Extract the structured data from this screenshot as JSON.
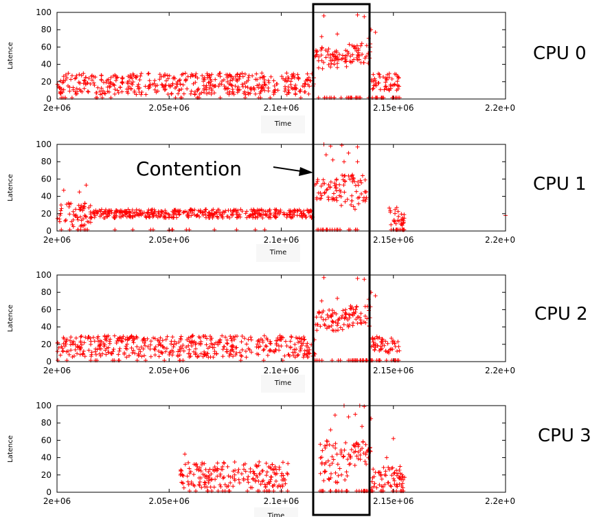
{
  "annotation": {
    "label": "Contention"
  },
  "chart_data": [
    {
      "type": "scatter",
      "panel_label": "CPU 0",
      "xlabel": "Time",
      "ylabel": "Latence",
      "xlim": [
        2000000,
        2200000
      ],
      "ylim": [
        0,
        100
      ],
      "xticks": [
        "2e+06",
        "2.05e+06",
        "2.1e+06",
        "2.15e+06",
        "2.2e+0"
      ],
      "yticks": [
        "0",
        "20",
        "40",
        "60",
        "80",
        "100"
      ],
      "color": "#ff0000",
      "marker": "plus",
      "segments": [
        {
          "x": [
            2000000,
            2115000
          ],
          "y": [
            5,
            30
          ]
        },
        {
          "x": [
            2115000,
            2130000
          ],
          "y": [
            35,
            60
          ]
        },
        {
          "x": [
            2130000,
            2140000
          ],
          "y": [
            40,
            65
          ]
        },
        {
          "x": [
            2140000,
            2153000
          ],
          "y": [
            10,
            30
          ]
        }
      ],
      "points": [
        {
          "x": 2119000,
          "y": 96
        },
        {
          "x": 2134000,
          "y": 97
        },
        {
          "x": 2137000,
          "y": 95
        },
        {
          "x": 2140000,
          "y": 80
        },
        {
          "x": 2142000,
          "y": 77
        },
        {
          "x": 2118000,
          "y": 72
        },
        {
          "x": 2125000,
          "y": 75
        },
        {
          "x": 2139000,
          "y": 70
        }
      ]
    },
    {
      "type": "scatter",
      "panel_label": "CPU 1",
      "xlabel": "Time",
      "ylabel": "Latence",
      "xlim": [
        2000000,
        2200000
      ],
      "ylim": [
        0,
        100
      ],
      "xticks": [
        "2e+06",
        "2.05e+06",
        "2.1e+06",
        "2.15e+06",
        "2.2e+0"
      ],
      "yticks": [
        "0",
        "20",
        "40",
        "60",
        "80",
        "100"
      ],
      "color": "#ff0000",
      "marker": "plus",
      "segments": [
        {
          "x": [
            2000000,
            2015000
          ],
          "y": [
            5,
            35
          ]
        },
        {
          "x": [
            2015000,
            2115000
          ],
          "y": [
            15,
            25
          ]
        },
        {
          "x": [
            2115000,
            2125000
          ],
          "y": [
            35,
            60
          ]
        },
        {
          "x": [
            2125000,
            2138000
          ],
          "y": [
            25,
            65
          ]
        },
        {
          "x": [
            2148000,
            2155000
          ],
          "y": [
            5,
            30
          ]
        }
      ],
      "points": [
        {
          "x": 2013000,
          "y": 53
        },
        {
          "x": 2010000,
          "y": 45
        },
        {
          "x": 2003000,
          "y": 47
        },
        {
          "x": 2119000,
          "y": 100
        },
        {
          "x": 2122000,
          "y": 98
        },
        {
          "x": 2127000,
          "y": 99
        },
        {
          "x": 2134000,
          "y": 97
        },
        {
          "x": 2120000,
          "y": 88
        },
        {
          "x": 2130000,
          "y": 90
        },
        {
          "x": 2123000,
          "y": 82
        },
        {
          "x": 2128000,
          "y": 80
        },
        {
          "x": 2134000,
          "y": 80
        },
        {
          "x": 2200000,
          "y": 18
        },
        {
          "x": 2050000,
          "y": 1
        }
      ]
    },
    {
      "type": "scatter",
      "panel_label": "CPU 2",
      "xlabel": "Time",
      "ylabel": "Latence",
      "xlim": [
        2000000,
        2200000
      ],
      "ylim": [
        0,
        100
      ],
      "xticks": [
        "2e+06",
        "2.05e+06",
        "2.1e+06",
        "2.15e+06",
        "2.2e+0"
      ],
      "yticks": [
        "0",
        "20",
        "40",
        "60",
        "80",
        "100"
      ],
      "color": "#ff0000",
      "marker": "plus",
      "segments": [
        {
          "x": [
            2000000,
            2115000
          ],
          "y": [
            5,
            30
          ]
        },
        {
          "x": [
            2115000,
            2130000
          ],
          "y": [
            35,
            60
          ]
        },
        {
          "x": [
            2130000,
            2140000
          ],
          "y": [
            40,
            65
          ]
        },
        {
          "x": [
            2140000,
            2153000
          ],
          "y": [
            10,
            30
          ]
        }
      ],
      "points": [
        {
          "x": 2119000,
          "y": 97
        },
        {
          "x": 2134000,
          "y": 96
        },
        {
          "x": 2137000,
          "y": 95
        },
        {
          "x": 2140000,
          "y": 80
        },
        {
          "x": 2142000,
          "y": 76
        },
        {
          "x": 2118000,
          "y": 70
        },
        {
          "x": 2125000,
          "y": 73
        },
        {
          "x": 2139000,
          "y": 72
        }
      ]
    },
    {
      "type": "scatter",
      "panel_label": "CPU 3",
      "xlabel": "Time",
      "ylabel": "Latence",
      "xlim": [
        2000000,
        2200000
      ],
      "ylim": [
        0,
        100
      ],
      "xticks": [
        "2e+06",
        "2.05e+06",
        "2.1e+06",
        "2.15e+06",
        "2.2e+0"
      ],
      "yticks": [
        "0",
        "20",
        "40",
        "60",
        "80",
        "100"
      ],
      "color": "#ff0000",
      "marker": "plus",
      "segments": [
        {
          "x": [
            2055000,
            2103000
          ],
          "y": [
            5,
            35
          ]
        },
        {
          "x": [
            2117000,
            2130000
          ],
          "y": [
            10,
            60
          ]
        },
        {
          "x": [
            2130000,
            2140000
          ],
          "y": [
            30,
            60
          ]
        },
        {
          "x": [
            2140000,
            2155000
          ],
          "y": [
            5,
            30
          ]
        }
      ],
      "points": [
        {
          "x": 2124000,
          "y": 89
        },
        {
          "x": 2130000,
          "y": 87
        },
        {
          "x": 2133000,
          "y": 90
        },
        {
          "x": 2135000,
          "y": 100
        },
        {
          "x": 2137000,
          "y": 99
        },
        {
          "x": 2128000,
          "y": 100
        },
        {
          "x": 2140000,
          "y": 85
        },
        {
          "x": 2122000,
          "y": 72
        },
        {
          "x": 2136000,
          "y": 76
        },
        {
          "x": 2150000,
          "y": 62
        },
        {
          "x": 2147000,
          "y": 40
        },
        {
          "x": 2057000,
          "y": 44
        }
      ]
    }
  ]
}
